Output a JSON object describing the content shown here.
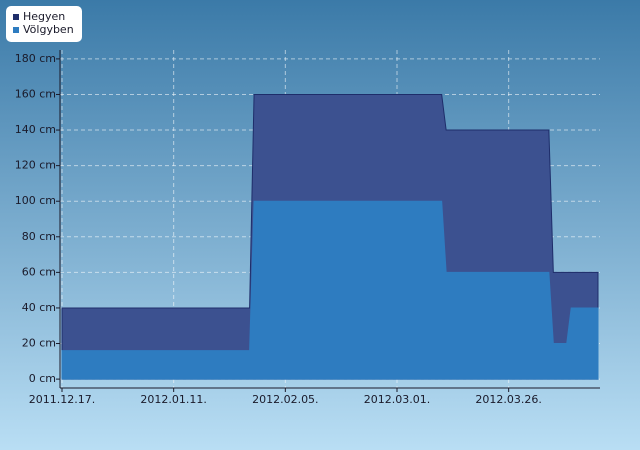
{
  "chart_data": {
    "type": "area",
    "series": [
      {
        "name": "Hegyen",
        "color": "#3c5190",
        "line_color": "#1e2d6a",
        "x": [
          "2011-12-17",
          "2012-01-28",
          "2012-01-29",
          "2012-03-11",
          "2012-03-12",
          "2012-04-04",
          "2012-04-05",
          "2012-04-15"
        ],
        "values": [
          40,
          40,
          160,
          160,
          140,
          140,
          60,
          60
        ]
      },
      {
        "name": "Völgyben",
        "color": "#2e7cc0",
        "line_color": "#2e7cc0",
        "x": [
          "2011-12-17",
          "2012-01-28",
          "2012-01-29",
          "2012-03-11",
          "2012-03-12",
          "2012-04-04",
          "2012-04-05",
          "2012-04-08",
          "2012-04-09",
          "2012-04-15"
        ],
        "values": [
          16,
          16,
          100,
          100,
          60,
          60,
          20,
          20,
          40,
          40
        ]
      }
    ],
    "xlim": [
      "2011-12-17",
      "2012-04-15"
    ],
    "xticks": [
      {
        "value": "2011-12-17",
        "label": "2011.12.17."
      },
      {
        "value": "2012-01-11",
        "label": "2012.01.11."
      },
      {
        "value": "2012-02-05",
        "label": "2012.02.05."
      },
      {
        "value": "2012-03-01",
        "label": "2012.03.01."
      },
      {
        "value": "2012-03-26",
        "label": "2012.03.26."
      }
    ],
    "ylim": [
      -5,
      185
    ],
    "yticks": [
      {
        "value": 0,
        "label": "0 cm"
      },
      {
        "value": 20,
        "label": "20 cm"
      },
      {
        "value": 40,
        "label": "40 cm"
      },
      {
        "value": 60,
        "label": "60 cm"
      },
      {
        "value": 80,
        "label": "80 cm"
      },
      {
        "value": 100,
        "label": "100 cm"
      },
      {
        "value": 120,
        "label": "120 cm"
      },
      {
        "value": 140,
        "label": "140 cm"
      },
      {
        "value": 160,
        "label": "160 cm"
      },
      {
        "value": 180,
        "label": "180 cm"
      }
    ],
    "grid": true,
    "legend": "top-left"
  }
}
